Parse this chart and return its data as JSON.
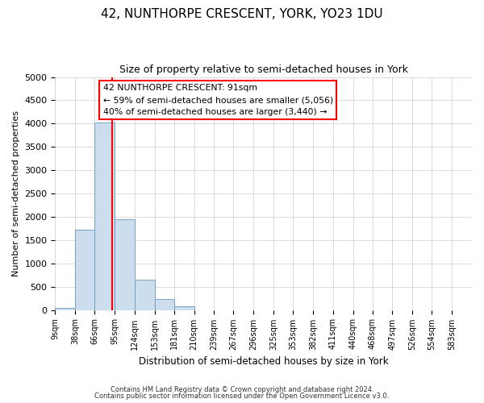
{
  "title": "42, NUNTHORPE CRESCENT, YORK, YO23 1DU",
  "subtitle": "Size of property relative to semi-detached houses in York",
  "xlabel": "Distribution of semi-detached houses by size in York",
  "ylabel": "Number of semi-detached properties",
  "bin_labels": [
    "9sqm",
    "38sqm",
    "66sqm",
    "95sqm",
    "124sqm",
    "153sqm",
    "181sqm",
    "210sqm",
    "239sqm",
    "267sqm",
    "296sqm",
    "325sqm",
    "353sqm",
    "382sqm",
    "411sqm",
    "440sqm",
    "468sqm",
    "497sqm",
    "526sqm",
    "554sqm",
    "583sqm"
  ],
  "bar_values": [
    50,
    1720,
    4020,
    1950,
    650,
    240,
    80,
    0,
    0,
    0,
    0,
    0,
    0,
    0,
    0,
    0,
    0,
    0,
    0,
    0
  ],
  "bar_color": "#ccdded",
  "bar_edge_color": "#6699bb",
  "property_line_x": 91,
  "ylim": [
    0,
    5000
  ],
  "yticks": [
    0,
    500,
    1000,
    1500,
    2000,
    2500,
    3000,
    3500,
    4000,
    4500,
    5000
  ],
  "annotation_title": "42 NUNTHORPE CRESCENT: 91sqm",
  "annotation_line1": "← 59% of semi-detached houses are smaller (5,056)",
  "annotation_line2": "40% of semi-detached houses are larger (3,440) →",
  "footer_line1": "Contains HM Land Registry data © Crown copyright and database right 2024.",
  "footer_line2": "Contains public sector information licensed under the Open Government Licence v3.0.",
  "background_color": "#ffffff",
  "grid_color": "#cccccc"
}
